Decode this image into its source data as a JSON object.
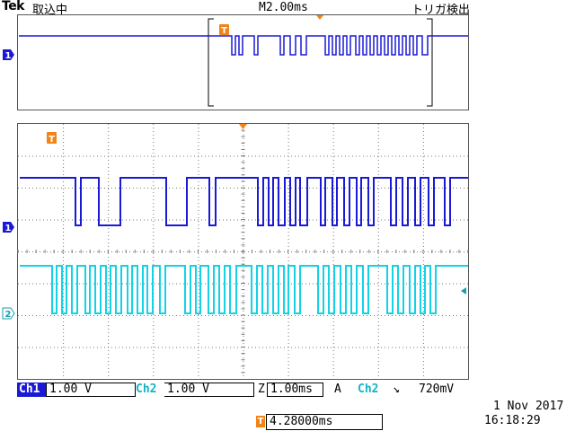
{
  "header": {
    "brand": "Tek",
    "acq_status": "取込中",
    "timebase": "M2.00ms",
    "trigger_status": "トリガ検出"
  },
  "channels": {
    "ch1": {
      "label": "Ch1",
      "scale": "1.00 V",
      "marker": "1",
      "color": "#1a1ad6"
    },
    "ch2": {
      "label": "Ch2",
      "scale": "1.00 V",
      "marker": "2",
      "color": "#14c8dc"
    }
  },
  "horizontal": {
    "zoom_label": "Z",
    "zoom_scale": "1.00ms"
  },
  "trigger": {
    "mode_label": "A",
    "source": "Ch2",
    "slope_symbol": "↘",
    "level": "720mV",
    "marker": "T",
    "position": "4.28000ms"
  },
  "datetime": {
    "date": "1 Nov 2017",
    "time": "16:18:29"
  },
  "colors": {
    "trigger_marker": "#f08418",
    "graticule": "#7f7f7f"
  }
}
